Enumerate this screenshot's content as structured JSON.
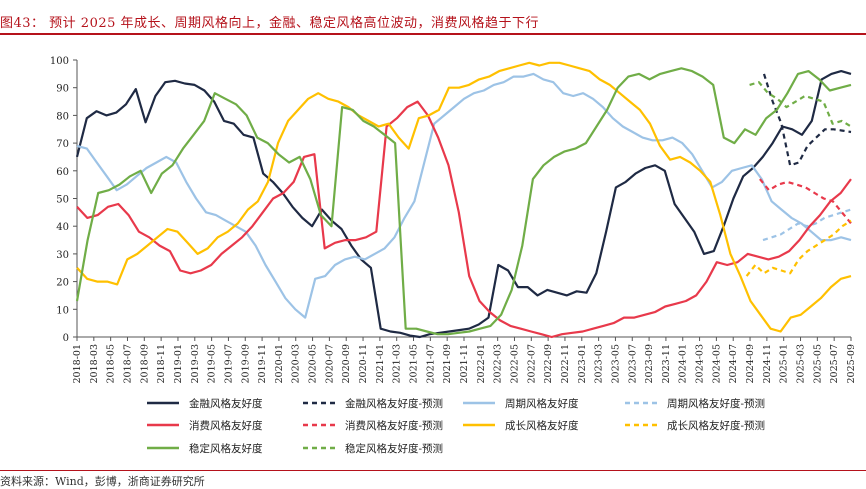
{
  "title": "图43：  预计 2025 年成长、周期风格向上，金融、稳定风格高位波动，消费风格趋于下行",
  "source": "资料来源：Wind，彭博，浙商证券研究所",
  "colors": {
    "financial": "#1f2a44",
    "cyclical": "#9dc3e6",
    "consumer": "#e8394b",
    "growth": "#ffc000",
    "stable": "#70ad47",
    "title": "#b5121b"
  },
  "chart_data": {
    "type": "line",
    "ylim": [
      0,
      100
    ],
    "yticks": [
      0,
      10,
      20,
      30,
      40,
      50,
      60,
      70,
      80,
      90,
      100
    ],
    "x_tick_labels": [
      "2018-01",
      "2018-03",
      "2018-05",
      "2018-07",
      "2018-09",
      "2018-11",
      "2019-01",
      "2019-03",
      "2019-05",
      "2019-07",
      "2019-09",
      "2019-11",
      "2020-01",
      "2020-03",
      "2020-05",
      "2020-07",
      "2020-09",
      "2020-11",
      "2021-01",
      "2021-03",
      "2021-05",
      "2021-07",
      "2021-09",
      "2021-11",
      "2022-01",
      "2022-03",
      "2022-05",
      "2022-07",
      "2022-09",
      "2022-11",
      "2023-01",
      "2023-03",
      "2023-05",
      "2023-07",
      "2023-09",
      "2023-11",
      "2024-01",
      "2024-03",
      "2024-05",
      "2024-07",
      "2024-09",
      "2024-11",
      "2025-01",
      "2025-03",
      "2025-05",
      "2025-07",
      "2025-09"
    ],
    "grid": false,
    "legend_position": "bottom",
    "series": [
      {
        "name": "金融风格友好度",
        "key": "financial",
        "dash": false,
        "values": [
          65,
          79,
          81.5,
          80,
          81,
          84,
          89.5,
          77.5,
          87,
          92,
          92.5,
          91.5,
          91,
          89,
          85,
          78,
          77,
          73,
          72,
          59,
          56,
          52,
          47,
          43,
          40,
          46,
          42,
          39,
          33,
          28,
          25,
          3,
          2,
          1.5,
          0.5,
          0,
          1,
          1.5,
          2,
          2.5,
          3,
          4.5,
          7,
          26,
          24,
          18,
          18,
          15,
          17,
          16,
          15,
          16.5,
          16,
          23,
          38,
          54,
          56,
          59,
          61,
          62,
          60,
          48,
          43,
          38,
          30,
          31,
          40,
          50,
          58,
          61,
          65,
          70,
          76,
          75,
          73,
          78,
          93,
          95,
          96,
          95
        ]
      },
      {
        "name": "金融风格友好度-预测",
        "key": "financial",
        "dash": true,
        "values": [
          null,
          null,
          null,
          null,
          null,
          null,
          null,
          null,
          null,
          null,
          null,
          null,
          null,
          null,
          null,
          null,
          null,
          null,
          null,
          null,
          null,
          null,
          null,
          null,
          null,
          null,
          null,
          null,
          null,
          null,
          null,
          null,
          null,
          null,
          null,
          null,
          null,
          null,
          null,
          null,
          null,
          null,
          null,
          null,
          null,
          null,
          null,
          null,
          null,
          null,
          null,
          null,
          null,
          null,
          null,
          null,
          null,
          null,
          null,
          null,
          null,
          null,
          null,
          null,
          null,
          null,
          null,
          null,
          null,
          null,
          null,
          null,
          null,
          null,
          null,
          null,
          null,
          null,
          null,
          95,
          85,
          77,
          62,
          63,
          69,
          72,
          75,
          75,
          74.5,
          74
        ]
      },
      {
        "name": "周期风格友好度",
        "key": "cyclical",
        "dash": false,
        "values": [
          69,
          68,
          63,
          58,
          53,
          55,
          58,
          61,
          63,
          65,
          63,
          56,
          50,
          45,
          44,
          42,
          40,
          38,
          33,
          26,
          20,
          14,
          10,
          7,
          21,
          22,
          26,
          28,
          29,
          28,
          30,
          32,
          36,
          43,
          49,
          63,
          77,
          80,
          83,
          86,
          88,
          89,
          91,
          92,
          94,
          94,
          95,
          93,
          92,
          88,
          87,
          88,
          86,
          83,
          79,
          76,
          74,
          72,
          71,
          71,
          72,
          70,
          66,
          60,
          54,
          56,
          60,
          61,
          62,
          57,
          49,
          46,
          43,
          41,
          38,
          35,
          35,
          36,
          35
        ]
      },
      {
        "name": "周期风格友好度-预测",
        "key": "cyclical",
        "dash": true,
        "values": [
          null,
          null,
          null,
          null,
          null,
          null,
          null,
          null,
          null,
          null,
          null,
          null,
          null,
          null,
          null,
          null,
          null,
          null,
          null,
          null,
          null,
          null,
          null,
          null,
          null,
          null,
          null,
          null,
          null,
          null,
          null,
          null,
          null,
          null,
          null,
          null,
          null,
          null,
          null,
          null,
          null,
          null,
          null,
          null,
          null,
          null,
          null,
          null,
          null,
          null,
          null,
          null,
          null,
          null,
          null,
          null,
          null,
          null,
          null,
          null,
          null,
          null,
          null,
          null,
          null,
          null,
          null,
          null,
          null,
          null,
          null,
          null,
          null,
          null,
          null,
          null,
          null,
          null,
          35,
          36,
          37,
          39,
          41,
          40,
          41,
          43,
          44,
          45,
          46
        ]
      },
      {
        "name": "消费风格友好度",
        "key": "consumer",
        "dash": false,
        "values": [
          47,
          43,
          44,
          47,
          48,
          44,
          38,
          36,
          33,
          31,
          24,
          23,
          24,
          26,
          30,
          33,
          36,
          40,
          45,
          50,
          52,
          56,
          65,
          66,
          32,
          34,
          35,
          35,
          36,
          38,
          76,
          79,
          83,
          85,
          80,
          72,
          62,
          45,
          22,
          13,
          9,
          6,
          4,
          3,
          2,
          1,
          0,
          1,
          1.5,
          2,
          3,
          4,
          5,
          7,
          7,
          8,
          9,
          11,
          12,
          13,
          15,
          20,
          27,
          26,
          27,
          30,
          29,
          28,
          29,
          31,
          35,
          40,
          44,
          49,
          52,
          57
        ]
      },
      {
        "name": "消费风格友好度-预测",
        "key": "consumer",
        "dash": true,
        "values": [
          null,
          null,
          null,
          null,
          null,
          null,
          null,
          null,
          null,
          null,
          null,
          null,
          null,
          null,
          null,
          null,
          null,
          null,
          null,
          null,
          null,
          null,
          null,
          null,
          null,
          null,
          null,
          null,
          null,
          null,
          null,
          null,
          null,
          null,
          null,
          null,
          null,
          null,
          null,
          null,
          null,
          null,
          null,
          null,
          null,
          null,
          null,
          null,
          null,
          null,
          null,
          null,
          null,
          null,
          null,
          null,
          null,
          null,
          null,
          null,
          null,
          null,
          null,
          null,
          null,
          null,
          null,
          null,
          null,
          null,
          null,
          null,
          null,
          null,
          null,
          57,
          53,
          55,
          56,
          55,
          54,
          52,
          50,
          49,
          45,
          41
        ]
      },
      {
        "name": "成长风格友好度",
        "key": "growth",
        "dash": false,
        "values": [
          25,
          21,
          20,
          20,
          19,
          28,
          30,
          33,
          36,
          39,
          38,
          34,
          30,
          32,
          36,
          38,
          41,
          46,
          49,
          56,
          70,
          78,
          82,
          86,
          88,
          86,
          85,
          83,
          80,
          78,
          76,
          77,
          72,
          68,
          79,
          80,
          82,
          90,
          90,
          91,
          93,
          94,
          96,
          97,
          98,
          99,
          98,
          99,
          99,
          98,
          97,
          96,
          93,
          91,
          88,
          85,
          82,
          77,
          69,
          64,
          65,
          63,
          60,
          56,
          44,
          30,
          22,
          13,
          8,
          3,
          2,
          7,
          8,
          11,
          14,
          18,
          21,
          22
        ]
      },
      {
        "name": "成长风格友好度-预测",
        "key": "growth",
        "dash": true,
        "values": [
          null,
          null,
          null,
          null,
          null,
          null,
          null,
          null,
          null,
          null,
          null,
          null,
          null,
          null,
          null,
          null,
          null,
          null,
          null,
          null,
          null,
          null,
          null,
          null,
          null,
          null,
          null,
          null,
          null,
          null,
          null,
          null,
          null,
          null,
          null,
          null,
          null,
          null,
          null,
          null,
          null,
          null,
          null,
          null,
          null,
          null,
          null,
          null,
          null,
          null,
          null,
          null,
          null,
          null,
          null,
          null,
          null,
          null,
          null,
          null,
          null,
          null,
          null,
          null,
          null,
          null,
          null,
          null,
          null,
          null,
          null,
          null,
          null,
          null,
          null,
          null,
          null,
          22,
          26,
          23,
          25,
          24,
          23,
          28,
          31,
          33,
          35,
          37,
          40,
          42
        ]
      },
      {
        "name": "稳定风格友好度",
        "key": "stable",
        "dash": false,
        "values": [
          13,
          35,
          52,
          53,
          55,
          58,
          60,
          52,
          59,
          62,
          68,
          73,
          78,
          88,
          86,
          84,
          80,
          72,
          70,
          66,
          63,
          65,
          57,
          44,
          40,
          83,
          82,
          78,
          76,
          73,
          70,
          3,
          3,
          2,
          1,
          1,
          1.5,
          2,
          3,
          4,
          8,
          17,
          33,
          57,
          62,
          65,
          67,
          68,
          70,
          76,
          82,
          90,
          94,
          95,
          93,
          95,
          96,
          97,
          96,
          94,
          91,
          72,
          70,
          75,
          73,
          79,
          82,
          88,
          95,
          96,
          93,
          89,
          90,
          91
        ]
      },
      {
        "name": "稳定风格友好度-预测",
        "key": "stable",
        "dash": true,
        "values": [
          null,
          null,
          null,
          null,
          null,
          null,
          null,
          null,
          null,
          null,
          null,
          null,
          null,
          null,
          null,
          null,
          null,
          null,
          null,
          null,
          null,
          null,
          null,
          null,
          null,
          null,
          null,
          null,
          null,
          null,
          null,
          null,
          null,
          null,
          null,
          null,
          null,
          null,
          null,
          null,
          null,
          null,
          null,
          null,
          null,
          null,
          null,
          null,
          null,
          null,
          null,
          null,
          null,
          null,
          null,
          null,
          null,
          null,
          null,
          null,
          null,
          null,
          null,
          null,
          null,
          null,
          null,
          null,
          null,
          null,
          null,
          null,
          null,
          91,
          92,
          88,
          86,
          83,
          85,
          87,
          86,
          85,
          77,
          78,
          76
        ]
      }
    ]
  }
}
